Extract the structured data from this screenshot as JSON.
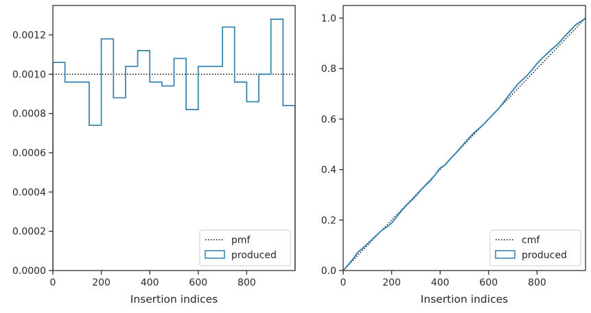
{
  "chart_data": [
    {
      "type": "line",
      "xlabel": "Insertion indices",
      "ylabel": "",
      "xlim": [
        0,
        1000
      ],
      "ylim": [
        0,
        0.00135
      ],
      "xticks": [
        0,
        200,
        400,
        600,
        800
      ],
      "xtick_labels": [
        "0",
        "200",
        "400",
        "600",
        "800"
      ],
      "yticks": [
        0,
        0.0002,
        0.0004,
        0.0006,
        0.0008,
        0.001,
        0.0012
      ],
      "ytick_labels": [
        "0.0000",
        "0.0002",
        "0.0004",
        "0.0006",
        "0.0008",
        "0.0010",
        "0.0012"
      ],
      "grid": false,
      "legend_position": "lower-right",
      "reference": {
        "name": "pmf",
        "value": 0.001,
        "style": "dotted",
        "color": "#000000"
      },
      "histogram": {
        "name": "produced",
        "color": "#3a86b3",
        "bin_width": 50,
        "bin_starts": [
          0,
          50,
          100,
          150,
          200,
          250,
          300,
          350,
          400,
          450,
          500,
          550,
          600,
          650,
          700,
          750,
          800,
          850,
          900,
          950
        ],
        "values": [
          0.00106,
          0.00096,
          0.00096,
          0.00074,
          0.00118,
          0.00088,
          0.00104,
          0.00112,
          0.00096,
          0.00094,
          0.00108,
          0.00082,
          0.00104,
          0.00104,
          0.00124,
          0.00096,
          0.00086,
          0.001,
          0.00128,
          0.00084
        ]
      }
    },
    {
      "type": "line",
      "xlabel": "Insertion indices",
      "ylabel": "",
      "xlim": [
        0,
        1000
      ],
      "ylim": [
        0,
        1.05
      ],
      "xticks": [
        0,
        200,
        400,
        600,
        800
      ],
      "xtick_labels": [
        "0",
        "200",
        "400",
        "600",
        "800"
      ],
      "yticks": [
        0,
        0.2,
        0.4,
        0.6,
        0.8,
        1.0
      ],
      "ytick_labels": [
        "0.0",
        "0.2",
        "0.4",
        "0.6",
        "0.8",
        "1.0"
      ],
      "grid": false,
      "legend_position": "lower-right",
      "reference": {
        "name": "cmf",
        "from": [
          0,
          0
        ],
        "to": [
          1000,
          1
        ],
        "style": "dotted",
        "color": "#000000"
      },
      "series": [
        {
          "name": "produced",
          "color": "#3a86b3",
          "x": [
            0,
            20,
            40,
            60,
            80,
            100,
            120,
            140,
            160,
            180,
            200,
            220,
            240,
            260,
            280,
            300,
            320,
            340,
            360,
            380,
            400,
            420,
            440,
            460,
            480,
            500,
            520,
            540,
            560,
            580,
            600,
            620,
            640,
            660,
            680,
            700,
            720,
            740,
            760,
            780,
            800,
            820,
            840,
            860,
            880,
            900,
            920,
            940,
            960,
            980,
            1000
          ],
          "y": [
            0,
            0.022,
            0.045,
            0.072,
            0.088,
            0.106,
            0.124,
            0.142,
            0.16,
            0.172,
            0.188,
            0.212,
            0.236,
            0.258,
            0.276,
            0.296,
            0.318,
            0.338,
            0.356,
            0.38,
            0.406,
            0.418,
            0.44,
            0.46,
            0.482,
            0.504,
            0.526,
            0.546,
            0.562,
            0.58,
            0.6,
            0.62,
            0.64,
            0.664,
            0.69,
            0.714,
            0.738,
            0.756,
            0.774,
            0.796,
            0.82,
            0.84,
            0.858,
            0.876,
            0.892,
            0.912,
            0.934,
            0.954,
            0.974,
            0.986,
            1.0
          ]
        }
      ]
    }
  ]
}
